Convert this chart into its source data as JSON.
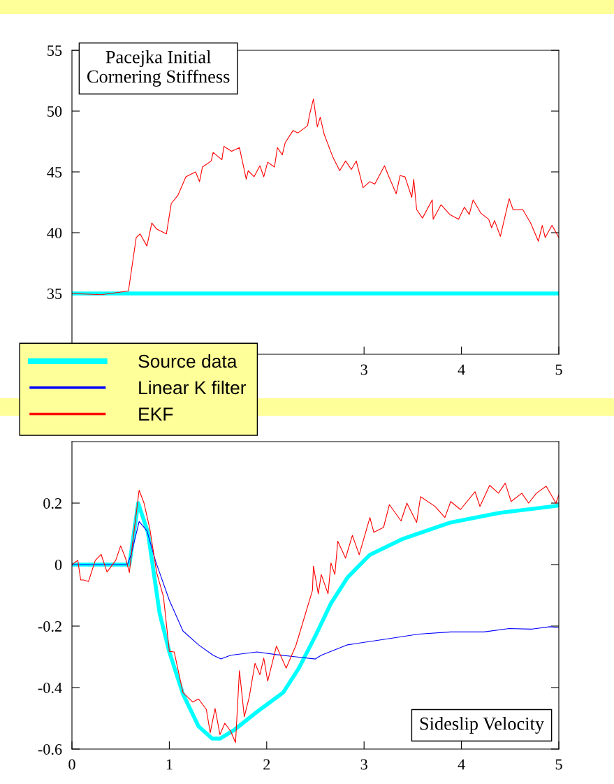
{
  "chart_data": [
    {
      "type": "line",
      "title": "Pacejka Initial\nCornering Stiffness",
      "xlim": [
        0,
        5
      ],
      "ylim": [
        30,
        55
      ],
      "xticks": [
        3,
        4,
        5
      ],
      "yticks": [
        35,
        40,
        45,
        50,
        55
      ],
      "grid": false,
      "legend": "bottom left",
      "series": [
        {
          "name": "Source data",
          "color": "#00ffff",
          "x": [
            0,
            5
          ],
          "values": [
            35,
            35
          ]
        },
        {
          "name": "EKF",
          "color": "#ff0000",
          "x": [
            0,
            0.3,
            0.58,
            0.66,
            0.7,
            0.77,
            0.82,
            0.87,
            0.97,
            0.99,
            1.02,
            1.09,
            1.17,
            1.27,
            1.31,
            1.34,
            1.43,
            1.45,
            1.54,
            1.56,
            1.64,
            1.72,
            1.79,
            1.81,
            1.87,
            1.93,
            1.97,
            2.01,
            2.08,
            2.11,
            2.16,
            2.19,
            2.27,
            2.32,
            2.42,
            2.44,
            2.48,
            2.52,
            2.55,
            2.59,
            2.68,
            2.75,
            2.81,
            2.87,
            2.92,
            2.99,
            3.06,
            3.11,
            3.21,
            3.25,
            3.33,
            3.37,
            3.42,
            3.49,
            3.51,
            3.54,
            3.6,
            3.7,
            3.71,
            3.79,
            3.88,
            3.97,
            4.03,
            4.08,
            4.12,
            4.2,
            4.28,
            4.31,
            4.34,
            4.4,
            4.49,
            4.53,
            4.63,
            4.71,
            4.79,
            4.83,
            4.86,
            4.93,
            5.0
          ],
          "values": [
            35,
            34.9,
            35.2,
            39.6,
            39.9,
            38.9,
            40.8,
            40.3,
            39.9,
            40.9,
            42.4,
            43.1,
            44.6,
            45.0,
            44.2,
            45.4,
            45.9,
            46.6,
            46.0,
            47.1,
            46.7,
            47.0,
            44.4,
            45.1,
            44.6,
            45.5,
            44.6,
            45.8,
            45.4,
            47.0,
            46.4,
            47.4,
            48.4,
            48.2,
            48.8,
            49.7,
            51.0,
            48.7,
            49.5,
            48.1,
            46.2,
            45.1,
            45.9,
            45.2,
            45.9,
            43.7,
            44.2,
            44.0,
            45.5,
            44.7,
            43.2,
            44.7,
            44.6,
            42.9,
            44.4,
            41.9,
            41.2,
            42.7,
            41.1,
            42.3,
            41.5,
            41.1,
            42.1,
            41.5,
            42.7,
            41.6,
            41.1,
            40.4,
            41.0,
            39.7,
            42.8,
            41.9,
            41.9,
            40.8,
            39.3,
            40.6,
            39.6,
            40.6,
            39.6
          ]
        }
      ]
    },
    {
      "type": "line",
      "title": "Sideslip Velocity",
      "xlim": [
        0,
        5
      ],
      "ylim": [
        -0.6,
        0.4
      ],
      "xticks": [
        0,
        1,
        2,
        3,
        4,
        5
      ],
      "yticks": [
        -0.6,
        -0.4,
        -0.2,
        0,
        0.2
      ],
      "grid": false,
      "series": [
        {
          "name": "Source data",
          "color": "#00ffff",
          "x": [
            0,
            0.59,
            0.68,
            0.78,
            0.9,
            1.0,
            1.14,
            1.3,
            1.44,
            1.52,
            1.67,
            1.9,
            2.17,
            2.33,
            2.5,
            2.66,
            2.83,
            3.06,
            3.4,
            3.89,
            4.39,
            5.0
          ],
          "values": [
            0,
            0,
            0.2,
            0.105,
            -0.158,
            -0.284,
            -0.421,
            -0.526,
            -0.566,
            -0.566,
            -0.537,
            -0.479,
            -0.416,
            -0.337,
            -0.232,
            -0.126,
            -0.042,
            0.032,
            0.084,
            0.137,
            0.168,
            0.192
          ]
        },
        {
          "name": "Linear K filter",
          "color": "#0000ff",
          "x": [
            0,
            0.57,
            0.61,
            0.69,
            0.77,
            0.86,
            1.0,
            1.14,
            1.3,
            1.45,
            1.53,
            1.63,
            1.9,
            2.1,
            2.3,
            2.5,
            2.56,
            2.83,
            3.23,
            3.56,
            3.89,
            4.23,
            4.49,
            4.72,
            4.91,
            5.0
          ],
          "values": [
            0,
            0,
            0.035,
            0.14,
            0.11,
            0.01,
            -0.116,
            -0.216,
            -0.261,
            -0.295,
            -0.307,
            -0.295,
            -0.284,
            -0.293,
            -0.3,
            -0.307,
            -0.295,
            -0.261,
            -0.242,
            -0.226,
            -0.219,
            -0.219,
            -0.208,
            -0.21,
            -0.202,
            -0.205
          ]
        },
        {
          "name": "EKF",
          "color": "#ff0000",
          "x": [
            0,
            0.06,
            0.09,
            0.12,
            0.17,
            0.24,
            0.3,
            0.36,
            0.45,
            0.5,
            0.55,
            0.59,
            0.62,
            0.69,
            0.74,
            0.8,
            0.87,
            0.94,
            1.0,
            1.05,
            1.14,
            1.24,
            1.3,
            1.38,
            1.42,
            1.47,
            1.52,
            1.57,
            1.63,
            1.68,
            1.72,
            1.77,
            1.82,
            1.88,
            1.93,
            1.97,
            2.01,
            2.1,
            2.2,
            2.3,
            2.36,
            2.47,
            2.48,
            2.53,
            2.56,
            2.63,
            2.66,
            2.7,
            2.73,
            2.81,
            2.88,
            2.95,
            3.06,
            3.1,
            3.2,
            3.26,
            3.38,
            3.44,
            3.54,
            3.58,
            3.73,
            3.83,
            3.89,
            3.99,
            4.14,
            4.19,
            4.29,
            4.38,
            4.45,
            4.51,
            4.62,
            4.69,
            4.77,
            4.87,
            4.97,
            5.0
          ],
          "values": [
            0,
            0.014,
            -0.05,
            -0.05,
            -0.055,
            0.014,
            0.033,
            -0.024,
            0.014,
            0.061,
            0.021,
            -0.026,
            0.063,
            0.242,
            0.2,
            0.116,
            -0.026,
            -0.105,
            -0.282,
            -0.284,
            -0.416,
            -0.447,
            -0.437,
            -0.471,
            -0.547,
            -0.468,
            -0.553,
            -0.516,
            -0.542,
            -0.579,
            -0.345,
            -0.495,
            -0.432,
            -0.321,
            -0.358,
            -0.304,
            -0.379,
            -0.265,
            -0.337,
            -0.263,
            -0.2,
            -0.084,
            -0.005,
            -0.095,
            -0.032,
            -0.095,
            0.005,
            -0.032,
            0.076,
            0.021,
            0.095,
            0.032,
            0.153,
            0.105,
            0.121,
            0.195,
            0.142,
            0.2,
            0.137,
            0.221,
            0.189,
            0.153,
            0.205,
            0.179,
            0.237,
            0.189,
            0.258,
            0.232,
            0.265,
            0.205,
            0.232,
            0.2,
            0.232,
            0.255,
            0.2,
            0.226
          ]
        }
      ]
    }
  ]
}
